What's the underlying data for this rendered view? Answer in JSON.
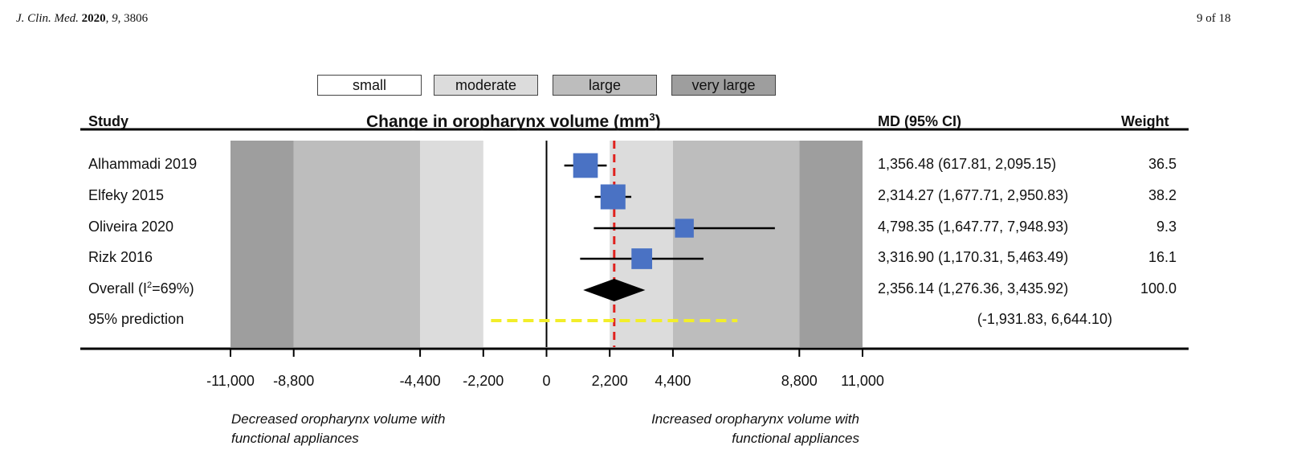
{
  "header": {
    "journal_name": "J. Clin. Med.",
    "journal_year": "2020",
    "journal_volume": "9",
    "journal_article": "3806",
    "page": "9 of 18"
  },
  "legend": {
    "small": "small",
    "moderate": "moderate",
    "large": "large",
    "very_large": "very large"
  },
  "columns": {
    "study": "Study",
    "md": "MD (95% CI)",
    "weight": "Weight"
  },
  "chart_data": {
    "type": "forest",
    "title": "Change in oropharynx volume (mm",
    "title_sup": "3",
    "title_close": ")",
    "x_ticks": [
      -11000,
      -8800,
      -4400,
      -2200,
      0,
      2200,
      4400,
      8800,
      11000
    ],
    "x_tick_labels": [
      "-11,000",
      "-8,800",
      "-4,400",
      "-2,200",
      "0",
      "2,200",
      "4,400",
      "8,800",
      "11,000"
    ],
    "xlim": [
      -11000,
      11000
    ],
    "effect_bands": [
      {
        "name": "small",
        "from": 0,
        "to": 2200,
        "color": "#ffffff"
      },
      {
        "name": "moderate",
        "from": 2200,
        "to": 4400,
        "color": "#dcdcdc"
      },
      {
        "name": "large",
        "from": 4400,
        "to": 8800,
        "color": "#bdbdbd"
      },
      {
        "name": "very large",
        "from": 8800,
        "to": 11000,
        "color": "#9e9e9e"
      }
    ],
    "studies": [
      {
        "label": "Alhammadi 2019",
        "md": 1356.48,
        "lo": 617.81,
        "hi": 2095.15,
        "ci_text": "1,356.48 (617.81, 2,095.15)",
        "weight": 36.5,
        "weight_text": "36.5"
      },
      {
        "label": "Elfeky 2015",
        "md": 2314.27,
        "lo": 1677.71,
        "hi": 2950.83,
        "ci_text": "2,314.27 (1,677.71, 2,950.83)",
        "weight": 38.2,
        "weight_text": "38.2"
      },
      {
        "label": "Oliveira 2020",
        "md": 4798.35,
        "lo": 1647.77,
        "hi": 7948.93,
        "ci_text": "4,798.35 (1,647.77, 7,948.93)",
        "weight": 9.3,
        "weight_text": "9.3"
      },
      {
        "label": "Rizk 2016",
        "md": 3316.9,
        "lo": 1170.31,
        "hi": 5463.49,
        "ci_text": "3,316.90 (1,170.31, 5,463.49)",
        "weight": 16.1,
        "weight_text": "16.1"
      }
    ],
    "overall": {
      "label_prefix": "Overall (I",
      "label_sup": "2",
      "label_suffix": "=69%)",
      "md": 2356.14,
      "lo": 1276.36,
      "hi": 3435.92,
      "ci_text": "2,356.14 (1,276.36, 3,435.92)",
      "weight_text": "100.0"
    },
    "prediction": {
      "label": "95% prediction",
      "lo": -1931.83,
      "hi": 6644.1,
      "ci_text": "(-1,931.83, 6,644.10)"
    },
    "colors": {
      "marker": "#4a72c4",
      "overall": "#000000",
      "ref_line": "#e0221e",
      "prediction": "#f2ee2a"
    }
  },
  "notes": {
    "left_line1": "Decreased oropharynx volume with",
    "left_line2": "functional appliances",
    "right_line1": "Increased oropharynx volume with",
    "right_line2": "functional appliances"
  }
}
